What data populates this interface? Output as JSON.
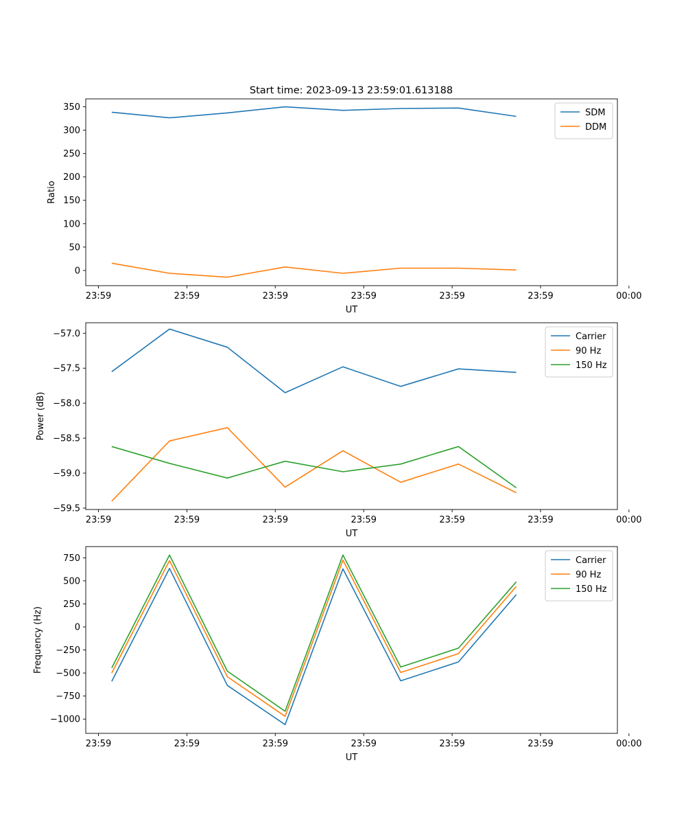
{
  "figure_title": "Start time: 2023-09-13 23:59:01.613188",
  "chart_data": [
    {
      "type": "line",
      "title": "Start time: 2023-09-13 23:59:01.613188",
      "xlabel": "UT",
      "ylabel": "Ratio",
      "x": [
        1,
        2,
        3,
        4,
        5,
        6,
        7,
        8
      ],
      "xlim": [
        0.55,
        9.75
      ],
      "xticks": [
        0.77,
        2.3,
        3.83,
        5.36,
        6.89,
        8.42,
        9.95
      ],
      "xtick_labels": [
        "23:59",
        "23:59",
        "23:59",
        "23:59",
        "23:59",
        "23:59",
        "00:00"
      ],
      "ylim": [
        -32.5,
        367
      ],
      "yticks": [
        0,
        50,
        100,
        150,
        200,
        250,
        300,
        350
      ],
      "ytick_labels": [
        "0",
        "50",
        "100",
        "150",
        "200",
        "250",
        "300",
        "350"
      ],
      "legend_position": "top-right",
      "series": [
        {
          "name": "SDM",
          "color": "#1f77b4",
          "values": [
            338.5,
            326.5,
            337,
            350,
            342.5,
            346.5,
            347.5,
            329.5
          ]
        },
        {
          "name": "DDM",
          "color": "#ff7f0e",
          "values": [
            15.5,
            -6,
            -14.5,
            7.5,
            -6,
            5,
            5,
            1
          ]
        }
      ]
    },
    {
      "type": "line",
      "xlabel": "UT",
      "ylabel": "Power (dB)",
      "x": [
        1,
        2,
        3,
        4,
        5,
        6,
        7,
        8
      ],
      "xlim": [
        0.55,
        9.75
      ],
      "xticks": [
        0.77,
        2.3,
        3.83,
        5.36,
        6.89,
        8.42,
        9.95
      ],
      "xtick_labels": [
        "23:59",
        "23:59",
        "23:59",
        "23:59",
        "23:59",
        "23:59",
        "00:00"
      ],
      "ylim": [
        -59.52,
        -56.85
      ],
      "yticks": [
        -59.5,
        -59.0,
        -58.5,
        -58.0,
        -57.5,
        -57.0
      ],
      "ytick_labels": [
        "−59.5",
        "−59.0",
        "−58.5",
        "−58.0",
        "−57.5",
        "−57.0"
      ],
      "legend_position": "top-right",
      "series": [
        {
          "name": "Carrier",
          "color": "#1f77b4",
          "values": [
            -57.55,
            -56.94,
            -57.2,
            -57.85,
            -57.48,
            -57.76,
            -57.51,
            -57.56
          ]
        },
        {
          "name": "90 Hz",
          "color": "#ff7f0e",
          "values": [
            -59.4,
            -58.54,
            -58.35,
            -59.2,
            -58.68,
            -59.13,
            -58.87,
            -59.28
          ]
        },
        {
          "name": "150 Hz",
          "color": "#2ca02c",
          "values": [
            -58.62,
            -58.86,
            -59.07,
            -58.83,
            -58.98,
            -58.87,
            -58.62,
            -59.21
          ]
        }
      ]
    },
    {
      "type": "line",
      "xlabel": "UT",
      "ylabel": "Frequency (Hz)",
      "x": [
        1,
        2,
        3,
        4,
        5,
        6,
        7,
        8
      ],
      "xlim": [
        0.55,
        9.75
      ],
      "xticks": [
        0.77,
        2.3,
        3.83,
        5.36,
        6.89,
        8.42,
        9.95
      ],
      "xtick_labels": [
        "23:59",
        "23:59",
        "23:59",
        "23:59",
        "23:59",
        "23:59",
        "00:00"
      ],
      "ylim": [
        -1155,
        872
      ],
      "yticks": [
        -1000,
        -750,
        -500,
        -250,
        0,
        250,
        500,
        750
      ],
      "ytick_labels": [
        "−1000",
        "−750",
        "−500",
        "−250",
        "0",
        "250",
        "500",
        "750"
      ],
      "legend_position": "top-right",
      "series": [
        {
          "name": "Carrier",
          "color": "#1f77b4",
          "values": [
            -590,
            635,
            -635,
            -1060,
            630,
            -585,
            -380,
            350
          ]
        },
        {
          "name": "90 Hz",
          "color": "#ff7f0e",
          "values": [
            -500,
            720,
            -540,
            -970,
            725,
            -495,
            -290,
            440
          ]
        },
        {
          "name": "150 Hz",
          "color": "#2ca02c",
          "values": [
            -445,
            780,
            -480,
            -915,
            780,
            -435,
            -230,
            490
          ]
        }
      ]
    }
  ]
}
